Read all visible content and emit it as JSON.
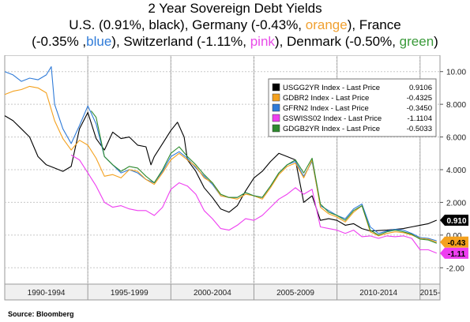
{
  "title": {
    "line1": "2 Year Sovereign Debt Yields",
    "line2": [
      "U.S. (0.91%, black), Germany (-0.43%, ",
      "orange",
      "), France"
    ],
    "line3": [
      "(-0.35% ,",
      "blue",
      "), Switzerland (-1.11%, ",
      "pink",
      "), Denmark (-0.50%, ",
      "green",
      ")"
    ]
  },
  "source": "Source: Bloomberg",
  "colors": {
    "background": "#ffffff",
    "us": "#000000",
    "germany": "#f4a11e",
    "france": "#2f7bd8",
    "switzerland": "#ee3ff0",
    "denmark": "#2e8a2e"
  },
  "chart_data": {
    "type": "line",
    "xlim": [
      1990.0,
      2016.2
    ],
    "ylim": [
      -3.0,
      11.0
    ],
    "y_ticks": [
      -2,
      0,
      2,
      4,
      6,
      8,
      10
    ],
    "y_tick_labels": [
      "-2.00",
      "0.00",
      "2.000",
      "4.000",
      "6.000",
      "8.000",
      "10.00"
    ],
    "x_period_labels": [
      {
        "label": "1990-1994",
        "from": 1990.0,
        "to": 1995.0
      },
      {
        "label": "1995-1999",
        "from": 1995.0,
        "to": 2000.0
      },
      {
        "label": "2000-2004",
        "from": 2000.0,
        "to": 2005.0
      },
      {
        "label": "2005-2009",
        "from": 2005.0,
        "to": 2010.0
      },
      {
        "label": "2010-2014",
        "from": 2010.0,
        "to": 2015.0
      },
      {
        "label": "2015-",
        "from": 2015.0,
        "to": 2016.2
      }
    ],
    "grid": "dashed",
    "legend_position": "top-right",
    "series": [
      {
        "name": "USGG2YR Index - Last Price",
        "last": "0.9106",
        "tag": "0.910",
        "key": "us",
        "points": [
          [
            1990.0,
            7.3
          ],
          [
            1990.5,
            7.0
          ],
          [
            1991.0,
            6.5
          ],
          [
            1991.5,
            6.0
          ],
          [
            1992.0,
            4.8
          ],
          [
            1992.5,
            4.3
          ],
          [
            1993.0,
            4.1
          ],
          [
            1993.5,
            3.9
          ],
          [
            1994.0,
            4.2
          ],
          [
            1994.5,
            6.5
          ],
          [
            1995.0,
            7.5
          ],
          [
            1995.5,
            5.9
          ],
          [
            1996.0,
            5.2
          ],
          [
            1996.5,
            6.3
          ],
          [
            1997.0,
            5.9
          ],
          [
            1997.5,
            6.0
          ],
          [
            1998.0,
            5.5
          ],
          [
            1998.5,
            5.4
          ],
          [
            1998.8,
            4.3
          ],
          [
            1999.0,
            4.8
          ],
          [
            1999.5,
            5.6
          ],
          [
            2000.0,
            6.4
          ],
          [
            2000.4,
            6.9
          ],
          [
            2000.8,
            6.0
          ],
          [
            2001.0,
            4.6
          ],
          [
            2001.5,
            3.9
          ],
          [
            2002.0,
            2.9
          ],
          [
            2002.5,
            2.3
          ],
          [
            2003.0,
            1.6
          ],
          [
            2003.5,
            1.4
          ],
          [
            2004.0,
            1.8
          ],
          [
            2004.5,
            2.7
          ],
          [
            2005.0,
            3.5
          ],
          [
            2005.5,
            3.9
          ],
          [
            2006.0,
            4.5
          ],
          [
            2006.5,
            5.0
          ],
          [
            2007.0,
            4.8
          ],
          [
            2007.5,
            4.6
          ],
          [
            2008.0,
            2.0
          ],
          [
            2008.5,
            2.4
          ],
          [
            2009.0,
            0.9
          ],
          [
            2009.5,
            1.0
          ],
          [
            2010.0,
            0.9
          ],
          [
            2010.5,
            0.6
          ],
          [
            2011.0,
            0.7
          ],
          [
            2011.5,
            0.4
          ],
          [
            2012.0,
            0.25
          ],
          [
            2013.0,
            0.3
          ],
          [
            2014.0,
            0.4
          ],
          [
            2014.5,
            0.5
          ],
          [
            2015.0,
            0.6
          ],
          [
            2015.5,
            0.7
          ],
          [
            2016.0,
            0.91
          ]
        ]
      },
      {
        "name": "GDBR2 Index - Last Price",
        "last": "-0.4325",
        "tag": "-0.43",
        "key": "germany",
        "points": [
          [
            1990.0,
            8.6
          ],
          [
            1990.5,
            8.8
          ],
          [
            1991.0,
            8.9
          ],
          [
            1991.5,
            9.1
          ],
          [
            1992.0,
            9.0
          ],
          [
            1992.5,
            8.7
          ],
          [
            1993.0,
            7.0
          ],
          [
            1993.5,
            5.9
          ],
          [
            1994.0,
            5.2
          ],
          [
            1994.5,
            5.8
          ],
          [
            1995.0,
            5.5
          ],
          [
            1995.5,
            4.7
          ],
          [
            1996.0,
            3.6
          ],
          [
            1996.5,
            3.7
          ],
          [
            1997.0,
            3.5
          ],
          [
            1997.5,
            4.0
          ],
          [
            1998.0,
            3.9
          ],
          [
            1998.5,
            3.4
          ],
          [
            1999.0,
            3.1
          ],
          [
            1999.5,
            3.8
          ],
          [
            2000.0,
            4.6
          ],
          [
            2000.5,
            5.0
          ],
          [
            2001.0,
            4.6
          ],
          [
            2001.5,
            4.2
          ],
          [
            2002.0,
            3.5
          ],
          [
            2002.5,
            3.2
          ],
          [
            2003.0,
            2.4
          ],
          [
            2003.5,
            2.3
          ],
          [
            2004.0,
            2.2
          ],
          [
            2004.5,
            2.5
          ],
          [
            2005.0,
            2.4
          ],
          [
            2005.5,
            2.2
          ],
          [
            2006.0,
            2.9
          ],
          [
            2006.5,
            3.7
          ],
          [
            2007.0,
            4.2
          ],
          [
            2007.5,
            4.4
          ],
          [
            2008.0,
            3.5
          ],
          [
            2008.5,
            4.6
          ],
          [
            2009.0,
            1.7
          ],
          [
            2009.5,
            1.3
          ],
          [
            2010.0,
            1.1
          ],
          [
            2010.5,
            0.8
          ],
          [
            2011.0,
            1.4
          ],
          [
            2011.5,
            1.8
          ],
          [
            2012.0,
            0.2
          ],
          [
            2012.5,
            -0.05
          ],
          [
            2013.0,
            0.1
          ],
          [
            2013.5,
            0.2
          ],
          [
            2014.0,
            0.15
          ],
          [
            2014.5,
            0.0
          ],
          [
            2015.0,
            -0.2
          ],
          [
            2015.5,
            -0.25
          ],
          [
            2016.0,
            -0.43
          ]
        ]
      },
      {
        "name": "GFRN2 Index - Last Price",
        "last": "-0.3450",
        "tag": "",
        "key": "france",
        "points": [
          [
            1990.0,
            10.0
          ],
          [
            1990.5,
            9.8
          ],
          [
            1991.0,
            9.4
          ],
          [
            1991.5,
            9.6
          ],
          [
            1992.0,
            9.5
          ],
          [
            1992.5,
            9.8
          ],
          [
            1992.8,
            10.3
          ],
          [
            1993.0,
            8.0
          ],
          [
            1993.5,
            6.5
          ],
          [
            1994.0,
            5.6
          ],
          [
            1994.5,
            6.7
          ],
          [
            1995.0,
            7.9
          ],
          [
            1995.5,
            6.8
          ],
          [
            1996.0,
            4.8
          ],
          [
            1996.5,
            4.3
          ],
          [
            1997.0,
            3.8
          ],
          [
            1997.5,
            4.0
          ],
          [
            1998.0,
            3.8
          ],
          [
            1998.5,
            3.4
          ],
          [
            1999.0,
            3.2
          ],
          [
            1999.5,
            3.9
          ],
          [
            2000.0,
            4.8
          ],
          [
            2000.5,
            5.1
          ],
          [
            2001.0,
            4.7
          ],
          [
            2001.5,
            4.1
          ],
          [
            2002.0,
            3.6
          ],
          [
            2002.5,
            3.1
          ],
          [
            2003.0,
            2.4
          ],
          [
            2003.5,
            2.3
          ],
          [
            2004.0,
            2.3
          ],
          [
            2004.5,
            2.6
          ],
          [
            2005.0,
            2.4
          ],
          [
            2005.5,
            2.3
          ],
          [
            2006.0,
            3.0
          ],
          [
            2006.5,
            3.8
          ],
          [
            2007.0,
            4.3
          ],
          [
            2007.5,
            4.5
          ],
          [
            2008.0,
            3.6
          ],
          [
            2008.5,
            4.5
          ],
          [
            2009.0,
            1.8
          ],
          [
            2009.5,
            1.5
          ],
          [
            2010.0,
            1.2
          ],
          [
            2010.5,
            1.0
          ],
          [
            2011.0,
            1.6
          ],
          [
            2011.5,
            1.9
          ],
          [
            2012.0,
            0.5
          ],
          [
            2012.5,
            0.1
          ],
          [
            2013.0,
            0.25
          ],
          [
            2013.5,
            0.35
          ],
          [
            2014.0,
            0.3
          ],
          [
            2014.5,
            0.1
          ],
          [
            2015.0,
            -0.15
          ],
          [
            2015.5,
            -0.2
          ],
          [
            2016.0,
            -0.35
          ]
        ]
      },
      {
        "name": "GSWISS02 Index - Last Price",
        "last": "-1.1104",
        "tag": "-1.11",
        "key": "switzerland",
        "points": [
          [
            1994.0,
            4.9
          ],
          [
            1994.5,
            4.6
          ],
          [
            1995.0,
            3.8
          ],
          [
            1995.5,
            3.0
          ],
          [
            1996.0,
            2.0
          ],
          [
            1996.5,
            1.7
          ],
          [
            1997.0,
            1.8
          ],
          [
            1997.5,
            1.6
          ],
          [
            1998.0,
            1.5
          ],
          [
            1998.5,
            1.5
          ],
          [
            1999.0,
            1.2
          ],
          [
            1999.5,
            1.7
          ],
          [
            2000.0,
            2.8
          ],
          [
            2000.5,
            3.2
          ],
          [
            2001.0,
            3.0
          ],
          [
            2001.5,
            2.5
          ],
          [
            2002.0,
            1.5
          ],
          [
            2002.5,
            1.0
          ],
          [
            2003.0,
            0.4
          ],
          [
            2003.5,
            0.3
          ],
          [
            2004.0,
            0.6
          ],
          [
            2004.5,
            1.0
          ],
          [
            2005.0,
            0.9
          ],
          [
            2005.5,
            1.2
          ],
          [
            2006.0,
            1.7
          ],
          [
            2006.5,
            2.2
          ],
          [
            2007.0,
            2.5
          ],
          [
            2007.5,
            2.9
          ],
          [
            2008.0,
            2.5
          ],
          [
            2008.5,
            2.8
          ],
          [
            2009.0,
            0.5
          ],
          [
            2009.5,
            0.4
          ],
          [
            2010.0,
            0.3
          ],
          [
            2010.5,
            0.1
          ],
          [
            2011.0,
            0.3
          ],
          [
            2011.5,
            -0.1
          ],
          [
            2012.0,
            -0.05
          ],
          [
            2012.5,
            -0.2
          ],
          [
            2013.0,
            -0.05
          ],
          [
            2013.5,
            -0.1
          ],
          [
            2014.0,
            -0.05
          ],
          [
            2014.5,
            -0.2
          ],
          [
            2015.0,
            -0.9
          ],
          [
            2015.5,
            -0.9
          ],
          [
            2016.0,
            -1.11
          ]
        ]
      },
      {
        "name": "GDGB2YR Index - Last Price",
        "last": "-0.5033",
        "tag": "",
        "key": "denmark",
        "points": [
          [
            1995.2,
            7.6
          ],
          [
            1995.5,
            7.2
          ],
          [
            1996.0,
            4.8
          ],
          [
            1996.5,
            4.3
          ],
          [
            1997.0,
            3.9
          ],
          [
            1997.5,
            4.2
          ],
          [
            1998.0,
            4.1
          ],
          [
            1998.5,
            3.6
          ],
          [
            1999.0,
            3.2
          ],
          [
            1999.5,
            4.0
          ],
          [
            2000.0,
            5.0
          ],
          [
            2000.5,
            5.4
          ],
          [
            2001.0,
            4.8
          ],
          [
            2001.5,
            4.3
          ],
          [
            2002.0,
            3.7
          ],
          [
            2002.5,
            3.2
          ],
          [
            2003.0,
            2.5
          ],
          [
            2003.5,
            2.3
          ],
          [
            2004.0,
            2.3
          ],
          [
            2004.5,
            2.6
          ],
          [
            2005.0,
            2.4
          ],
          [
            2005.5,
            2.3
          ],
          [
            2006.0,
            3.0
          ],
          [
            2006.5,
            3.8
          ],
          [
            2007.0,
            4.3
          ],
          [
            2007.5,
            4.6
          ],
          [
            2008.0,
            3.8
          ],
          [
            2008.5,
            4.7
          ],
          [
            2009.0,
            1.9
          ],
          [
            2009.5,
            1.4
          ],
          [
            2010.0,
            1.2
          ],
          [
            2010.5,
            0.9
          ],
          [
            2011.0,
            1.5
          ],
          [
            2011.5,
            1.8
          ],
          [
            2012.0,
            0.3
          ],
          [
            2012.5,
            0.0
          ],
          [
            2013.0,
            0.2
          ],
          [
            2013.5,
            0.3
          ],
          [
            2014.0,
            0.2
          ],
          [
            2014.5,
            0.05
          ],
          [
            2015.0,
            -0.25
          ],
          [
            2015.5,
            -0.3
          ],
          [
            2016.0,
            -0.5
          ]
        ]
      }
    ]
  }
}
